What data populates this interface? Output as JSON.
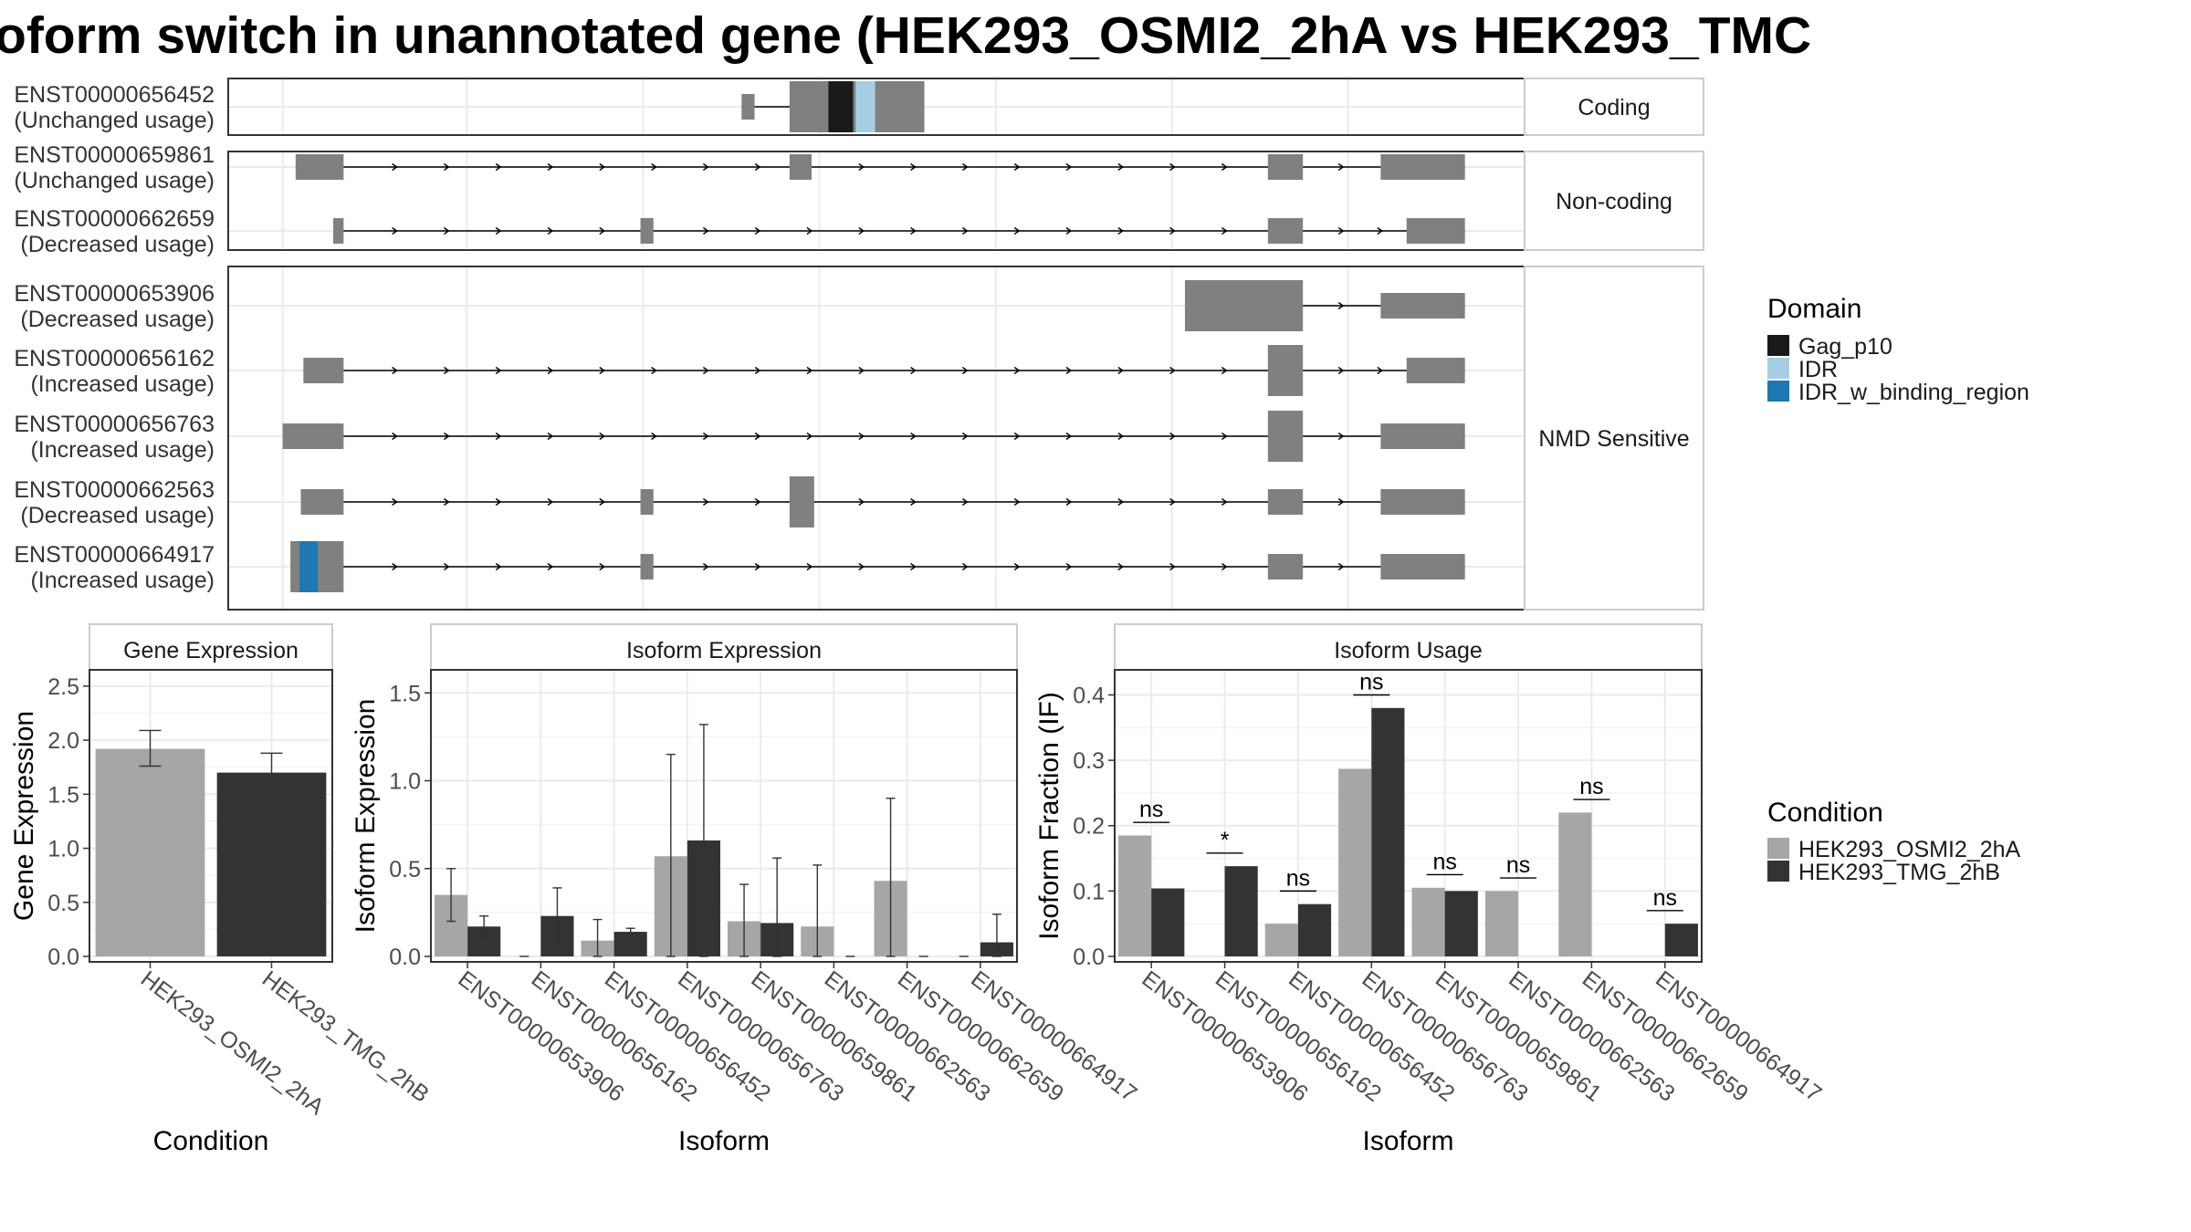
{
  "title": "oform switch in unannotated gene (HEK293_OSMI2_2hA vs HEK293_TMC",
  "colors": {
    "exon": "#808080",
    "gag_p10": "#1a1a1a",
    "idr": "#a6cee3",
    "idr_w_binding_region": "#1f78b4",
    "condition_a": "#a6a6a6",
    "condition_b": "#333333",
    "grid": "#ebebeb",
    "panel_border": "#333333"
  },
  "transcript_panels": [
    {
      "label": "Coding",
      "transcripts": [
        {
          "id": "ENST00000656452",
          "usage": "(Unchanged usage)",
          "exons": [
            {
              "s": 0.396,
              "e": 0.406,
              "t": "utr"
            },
            {
              "s": 0.433,
              "e": 0.537,
              "t": "cds"
            }
          ],
          "domains": [
            {
              "s": 0.463,
              "e": 0.482,
              "c": "gag_p10"
            },
            {
              "s": 0.484,
              "e": 0.499,
              "c": "idr"
            }
          ],
          "arrows": []
        }
      ]
    },
    {
      "label": "Non-coding",
      "transcripts": [
        {
          "id": "ENST00000659861",
          "usage": "(Unchanged usage)",
          "exons": [
            {
              "s": 0.052,
              "e": 0.089,
              "t": "nc"
            },
            {
              "s": 0.433,
              "e": 0.45,
              "t": "nc"
            },
            {
              "s": 0.802,
              "e": 0.829,
              "t": "nc"
            },
            {
              "s": 0.889,
              "e": 0.954,
              "t": "nc"
            }
          ],
          "domains": [],
          "arrows": [
            0.13,
            0.17,
            0.21,
            0.25,
            0.29,
            0.33,
            0.37,
            0.41,
            0.49,
            0.53,
            0.57,
            0.61,
            0.65,
            0.69,
            0.73,
            0.77,
            0.86
          ]
        },
        {
          "id": "ENST00000662659",
          "usage": "(Decreased usage)",
          "exons": [
            {
              "s": 0.081,
              "e": 0.089,
              "t": "nc"
            },
            {
              "s": 0.318,
              "e": 0.328,
              "t": "nc"
            },
            {
              "s": 0.802,
              "e": 0.829,
              "t": "nc"
            },
            {
              "s": 0.909,
              "e": 0.954,
              "t": "nc"
            }
          ],
          "domains": [],
          "arrows": [
            0.13,
            0.17,
            0.21,
            0.25,
            0.29,
            0.37,
            0.41,
            0.45,
            0.49,
            0.53,
            0.57,
            0.61,
            0.65,
            0.69,
            0.73,
            0.77,
            0.86,
            0.89
          ]
        }
      ]
    },
    {
      "label": "NMD Sensitive",
      "transcripts": [
        {
          "id": "ENST00000653906",
          "usage": "(Decreased usage)",
          "exons": [
            {
              "s": 0.738,
              "e": 0.829,
              "t": "cds"
            },
            {
              "s": 0.889,
              "e": 0.954,
              "t": "utr"
            }
          ],
          "domains": [],
          "arrows": [
            0.86
          ]
        },
        {
          "id": "ENST00000656162",
          "usage": "(Increased usage)",
          "exons": [
            {
              "s": 0.058,
              "e": 0.089,
              "t": "utr"
            },
            {
              "s": 0.802,
              "e": 0.829,
              "t": "cds"
            },
            {
              "s": 0.909,
              "e": 0.954,
              "t": "utr"
            }
          ],
          "domains": [],
          "arrows": [
            0.13,
            0.17,
            0.21,
            0.25,
            0.29,
            0.33,
            0.37,
            0.41,
            0.45,
            0.49,
            0.53,
            0.57,
            0.61,
            0.65,
            0.69,
            0.73,
            0.77,
            0.86,
            0.89
          ]
        },
        {
          "id": "ENST00000656763",
          "usage": "(Increased usage)",
          "exons": [
            {
              "s": 0.042,
              "e": 0.089,
              "t": "utr"
            },
            {
              "s": 0.802,
              "e": 0.829,
              "t": "cds"
            },
            {
              "s": 0.889,
              "e": 0.954,
              "t": "utr"
            }
          ],
          "domains": [],
          "arrows": [
            0.13,
            0.17,
            0.21,
            0.25,
            0.29,
            0.33,
            0.37,
            0.41,
            0.45,
            0.49,
            0.53,
            0.57,
            0.61,
            0.65,
            0.69,
            0.73,
            0.77,
            0.86
          ]
        },
        {
          "id": "ENST00000662563",
          "usage": "(Decreased usage)",
          "exons": [
            {
              "s": 0.056,
              "e": 0.089,
              "t": "utr"
            },
            {
              "s": 0.318,
              "e": 0.328,
              "t": "utr"
            },
            {
              "s": 0.433,
              "e": 0.452,
              "t": "cds"
            },
            {
              "s": 0.802,
              "e": 0.829,
              "t": "utr"
            },
            {
              "s": 0.889,
              "e": 0.954,
              "t": "utr"
            }
          ],
          "domains": [],
          "arrows": [
            0.13,
            0.17,
            0.21,
            0.25,
            0.29,
            0.37,
            0.41,
            0.49,
            0.53,
            0.57,
            0.61,
            0.65,
            0.69,
            0.73,
            0.77,
            0.86
          ]
        },
        {
          "id": "ENST00000664917",
          "usage": "(Increased usage)",
          "exons": [
            {
              "s": 0.048,
              "e": 0.089,
              "t": "cds"
            },
            {
              "s": 0.318,
              "e": 0.328,
              "t": "utr"
            },
            {
              "s": 0.802,
              "e": 0.829,
              "t": "utr"
            },
            {
              "s": 0.889,
              "e": 0.954,
              "t": "utr"
            }
          ],
          "domains": [
            {
              "s": 0.055,
              "e": 0.069,
              "c": "idr_w_binding_region"
            }
          ],
          "arrows": [
            0.13,
            0.17,
            0.21,
            0.25,
            0.29,
            0.37,
            0.41,
            0.45,
            0.49,
            0.53,
            0.57,
            0.61,
            0.65,
            0.69,
            0.73,
            0.77,
            0.86
          ]
        }
      ]
    }
  ],
  "legends": {
    "domain": {
      "title": "Domain",
      "items": [
        {
          "label": "Gag_p10",
          "color": "gag_p10"
        },
        {
          "label": "IDR",
          "color": "idr"
        },
        {
          "label": "IDR_w_binding_region",
          "color": "idr_w_binding_region"
        }
      ]
    },
    "condition": {
      "title": "Condition",
      "items": [
        {
          "label": "HEK293_OSMI2_2hA",
          "color": "condition_a"
        },
        {
          "label": "HEK293_TMG_2hB",
          "color": "condition_b"
        }
      ]
    }
  },
  "chart_data": [
    {
      "type": "bar",
      "title": "Gene Expression",
      "xlabel": "Condition",
      "ylabel": "Gene Expression",
      "ylim": [
        0,
        2.6
      ],
      "yticks": [
        0.0,
        0.5,
        1.0,
        1.5,
        2.0,
        2.5
      ],
      "ytick_labels": [
        "0.0",
        "0.5",
        "1.0",
        "1.5",
        "2.0",
        "2.5"
      ],
      "categories": [
        "HEK293_OSMI2_2hA",
        "HEK293_TMG_2hB"
      ],
      "values": [
        1.92,
        1.7
      ],
      "error_low": [
        1.76,
        1.53
      ],
      "error_high": [
        2.09,
        1.88
      ]
    },
    {
      "type": "bar",
      "title": "Isoform Expression",
      "xlabel": "Isoform",
      "ylabel": "Isoform Expression",
      "ylim": [
        0,
        1.6
      ],
      "yticks": [
        0.0,
        0.5,
        1.0,
        1.5
      ],
      "ytick_labels": [
        "0.0",
        "0.5",
        "1.0",
        "1.5"
      ],
      "categories": [
        "ENST00000653906",
        "ENST00000656162",
        "ENST00000656452",
        "ENST00000656763",
        "ENST00000659861",
        "ENST00000662563",
        "ENST00000662659",
        "ENST00000664917"
      ],
      "series": [
        {
          "name": "HEK293_OSMI2_2hA",
          "values": [
            0.35,
            0.0,
            0.09,
            0.57,
            0.2,
            0.17,
            0.43,
            0.0
          ],
          "error_low": [
            0.2,
            0.0,
            0.0,
            0.0,
            0.0,
            0.0,
            0.0,
            0.0
          ],
          "error_high": [
            0.5,
            0.0,
            0.21,
            1.15,
            0.41,
            0.52,
            0.9,
            0.0
          ]
        },
        {
          "name": "HEK293_TMG_2hB",
          "values": [
            0.17,
            0.23,
            0.14,
            0.66,
            0.19,
            0.0,
            0.0,
            0.08
          ],
          "error_low": [
            0.11,
            0.06,
            0.12,
            0.0,
            0.0,
            0.0,
            0.0,
            0.0
          ],
          "error_high": [
            0.23,
            0.39,
            0.16,
            1.32,
            0.56,
            0.0,
            0.0,
            0.24
          ]
        }
      ]
    },
    {
      "type": "bar",
      "title": "Isoform Usage",
      "xlabel": "Isoform",
      "ylabel": "Isoform Fraction (IF)",
      "ylim": [
        0,
        0.43
      ],
      "yticks": [
        0.0,
        0.1,
        0.2,
        0.3,
        0.4
      ],
      "ytick_labels": [
        "0.0",
        "0.1",
        "0.2",
        "0.3",
        "0.4"
      ],
      "categories": [
        "ENST00000653906",
        "ENST00000656162",
        "ENST00000656452",
        "ENST00000656763",
        "ENST00000659861",
        "ENST00000662563",
        "ENST00000662659",
        "ENST00000664917"
      ],
      "series": [
        {
          "name": "HEK293_OSMI2_2hA",
          "values": [
            0.185,
            0.0,
            0.05,
            0.287,
            0.105,
            0.1,
            0.22,
            0.0
          ]
        },
        {
          "name": "HEK293_TMG_2hB",
          "values": [
            0.104,
            0.138,
            0.08,
            0.38,
            0.1,
            0.0,
            0.0,
            0.05
          ]
        }
      ],
      "significance": [
        {
          "label": "ns",
          "y": 0.205
        },
        {
          "label": "*",
          "y": 0.158
        },
        {
          "label": "ns",
          "y": 0.1
        },
        {
          "label": "ns",
          "y": 0.4
        },
        {
          "label": "ns",
          "y": 0.125
        },
        {
          "label": "ns",
          "y": 0.12
        },
        {
          "label": "ns",
          "y": 0.24
        },
        {
          "label": "ns",
          "y": 0.07
        }
      ]
    }
  ]
}
